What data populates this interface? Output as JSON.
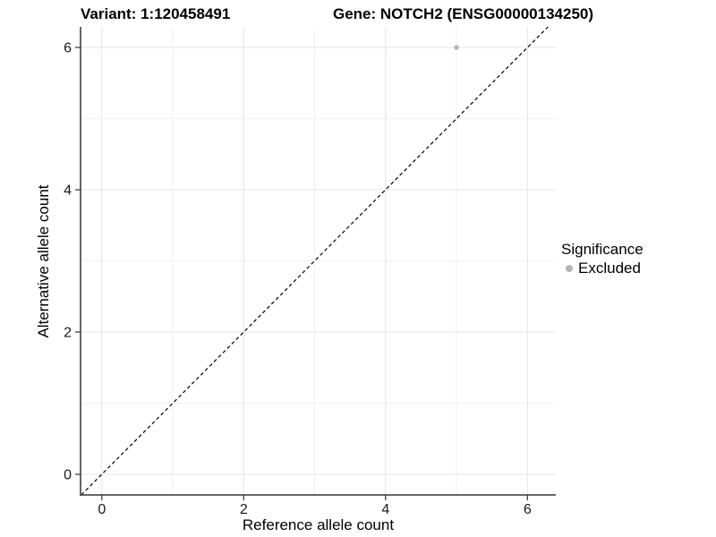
{
  "chart_data": {
    "type": "scatter",
    "titles": {
      "left": "Variant: 1:120458491",
      "right": "Gene: NOTCH2 (ENSG00000134250)"
    },
    "xlabel": "Reference allele count",
    "ylabel": "Alternative allele count",
    "xticks": [
      0,
      2,
      4,
      6
    ],
    "yticks": [
      0,
      2,
      4,
      6
    ],
    "xlim": [
      -0.3,
      6.4
    ],
    "ylim": [
      -0.29,
      6.29
    ],
    "grid": {
      "major": true,
      "minor": true
    },
    "identity_line": {
      "style": "dashed",
      "slope": 1,
      "intercept": 0,
      "color": "#000000"
    },
    "series": [
      {
        "name": "Excluded",
        "color": "#b5b5b5",
        "point_radius": 2.8,
        "points": [
          {
            "x": 5,
            "y": 6
          }
        ]
      }
    ],
    "legend": {
      "title": "Significance",
      "position": "right",
      "items": [
        {
          "label": "Excluded",
          "color": "#b5b5b5",
          "marker": "circle"
        }
      ]
    }
  },
  "style_colors": {
    "grid_major": "#e4e4e4",
    "grid_minor": "#f1f1f1",
    "axis_line": "#333333",
    "tick_label": "#1a1a1a",
    "text": "#000000",
    "background": "#ffffff"
  }
}
